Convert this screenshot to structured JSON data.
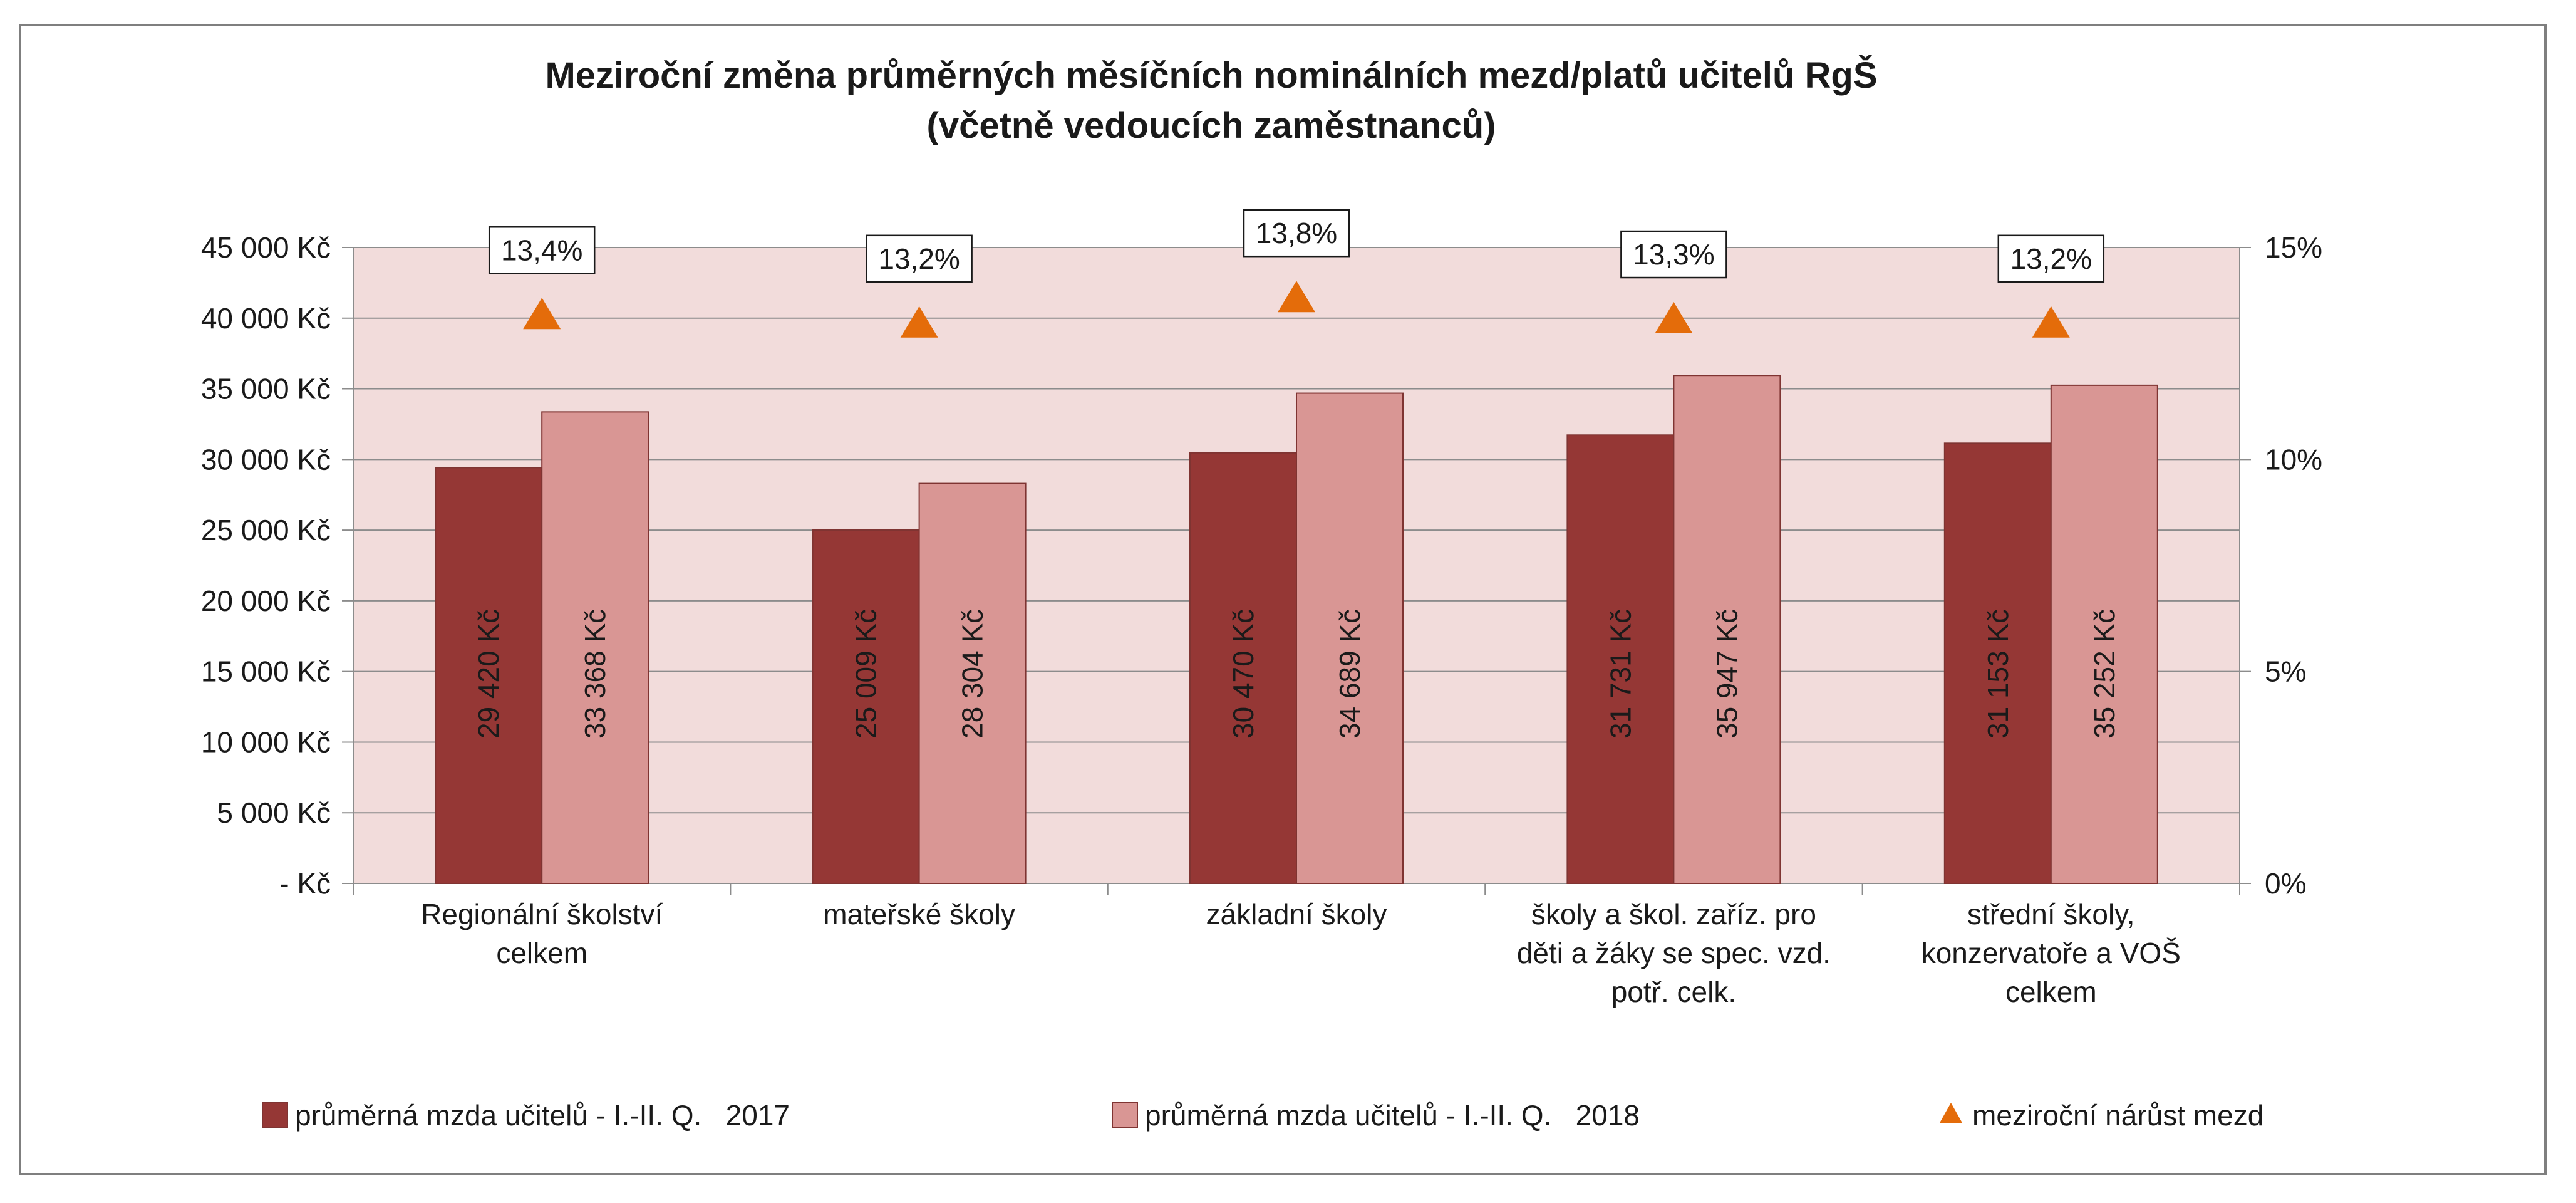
{
  "chart_data": {
    "type": "bar",
    "title_line1": "Meziroční změna průměrných měsíčních nominálních mezd/platů učitelů RgŠ",
    "title_line2": "(včetně vedoucích zaměstnanců)",
    "categories": [
      [
        "Regionální školství",
        "celkem"
      ],
      [
        "mateřské školy"
      ],
      [
        "základní školy"
      ],
      [
        "školy a škol. zaříz. pro",
        "děti a žáky se spec. vzd.",
        "potř. celk."
      ],
      [
        "střední školy,",
        "konzervatoře a VOŠ",
        "celkem"
      ]
    ],
    "series": [
      {
        "name": "průměrná mzda učitelů - I.-II. Q.   2017",
        "values": [
          29420,
          25009,
          30470,
          31731,
          31153
        ],
        "labels": [
          "29 420 Kč",
          "25 009 Kč",
          "30 470 Kč",
          "31 731 Kč",
          "31 153 Kč"
        ],
        "color": "#953735"
      },
      {
        "name": "průměrná mzda učitelů - I.-II. Q.   2018",
        "values": [
          33368,
          28304,
          34689,
          35947,
          35252
        ],
        "labels": [
          "33 368 Kč",
          "28 304 Kč",
          "34 689 Kč",
          "35 947 Kč",
          "35 252 Kč"
        ],
        "color": "#d99694"
      }
    ],
    "growth_series": {
      "name": "meziroční nárůst mezd",
      "values": [
        13.4,
        13.2,
        13.8,
        13.3,
        13.2
      ],
      "labels": [
        "13,4%",
        "13,2%",
        "13,8%",
        "13,3%",
        "13,2%"
      ],
      "color": "#e46c0a"
    },
    "y_left": {
      "range": [
        0,
        45000
      ],
      "ticks": [
        0,
        5000,
        10000,
        15000,
        20000,
        25000,
        30000,
        35000,
        40000,
        45000
      ],
      "tick_labels": [
        "-  Kč",
        "5 000 Kč",
        "10 000 Kč",
        "15 000 Kč",
        "20 000 Kč",
        "25 000 Kč",
        "30 000 Kč",
        "35 000 Kč",
        "40 000 Kč",
        "45 000 Kč"
      ]
    },
    "y_right": {
      "range": [
        0,
        15
      ],
      "ticks": [
        0,
        5,
        10,
        15
      ],
      "tick_labels": [
        "0%",
        "5%",
        "10%",
        "15%"
      ]
    },
    "plot_background": "#f2dcdb",
    "grid": true,
    "legend_position": "bottom"
  }
}
